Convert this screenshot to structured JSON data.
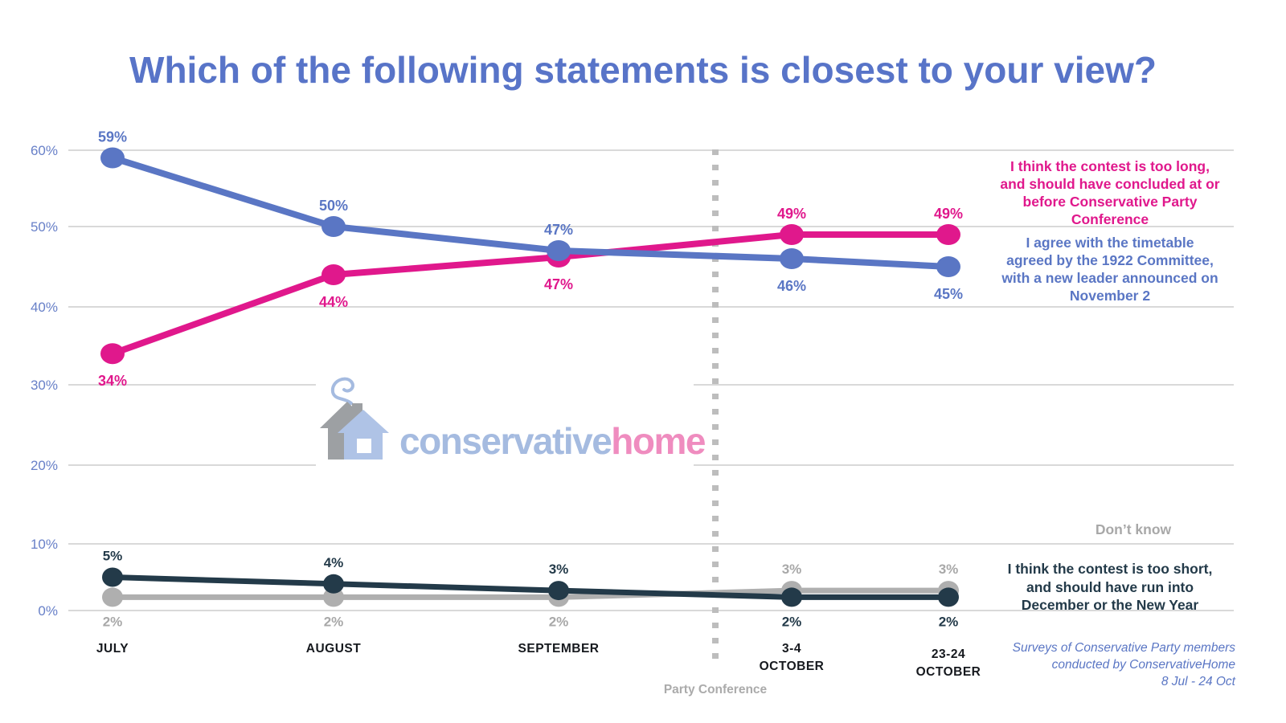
{
  "title": "Which of the following statements is closest to your view?",
  "chart_data": {
    "type": "line",
    "categories": [
      "JULY",
      "AUGUST",
      "SEPTEMBER",
      "3-4\nOCTOBER",
      "23-24\nOCTOBER"
    ],
    "series": [
      {
        "name": "I agree with the timetable agreed by the 1922 Committee, with a new leader announced on November 2",
        "color": "#5A76C4",
        "values": [
          59,
          50,
          47,
          46,
          45
        ]
      },
      {
        "name": "I think the contest is too long, and should have concluded at or before Conservative Party Conference",
        "color": "#E0188C",
        "values": [
          34,
          44,
          47,
          49,
          49
        ]
      },
      {
        "name": "I think the contest is too short, and should have run into December or the New Year",
        "color": "#233A49",
        "values": [
          5,
          4,
          3,
          2,
          2
        ]
      },
      {
        "name": "Don’t know",
        "color": "#AFAFAF",
        "values": [
          2,
          2,
          2,
          3,
          3
        ]
      }
    ],
    "ylim": [
      0,
      60
    ],
    "yticks": [
      0,
      10,
      20,
      30,
      40,
      50,
      60
    ],
    "ytick_format": "percent",
    "data_label_suffix": "%",
    "grid": "horizontal",
    "legend_position": "right",
    "annotations": {
      "divider_label": "Party Conference",
      "divider_after": "SEPTEMBER"
    }
  },
  "legend": {
    "too_long": "I think the contest is too long,\nand should have concluded at or\nbefore Conservative Party\nConference",
    "timetable": "I agree with the timetable\nagreed by the 1922 Committee,\nwith a new leader announced on\nNovember 2",
    "dont_know": "Don’t know",
    "too_short": "I think the contest is too short,\nand should have run into\nDecember or the New Year"
  },
  "footer": {
    "text": "Surveys of Conservative Party members\nconducted by ConservativeHome\n8 Jul - 24 Oct"
  },
  "logo": {
    "part1": "conservative",
    "part2": "home"
  },
  "colors": {
    "title_blue": "#5874C8",
    "line_blue": "#5A76C4",
    "line_magenta": "#E0188C",
    "line_dark_navy": "#233A49",
    "line_gray": "#AFAFAF",
    "axis_tick_blue": "#6880C8",
    "gridline": "#D9D9D9",
    "divider_gray": "#BDBDBD",
    "x_label_dark": "#16191E"
  }
}
